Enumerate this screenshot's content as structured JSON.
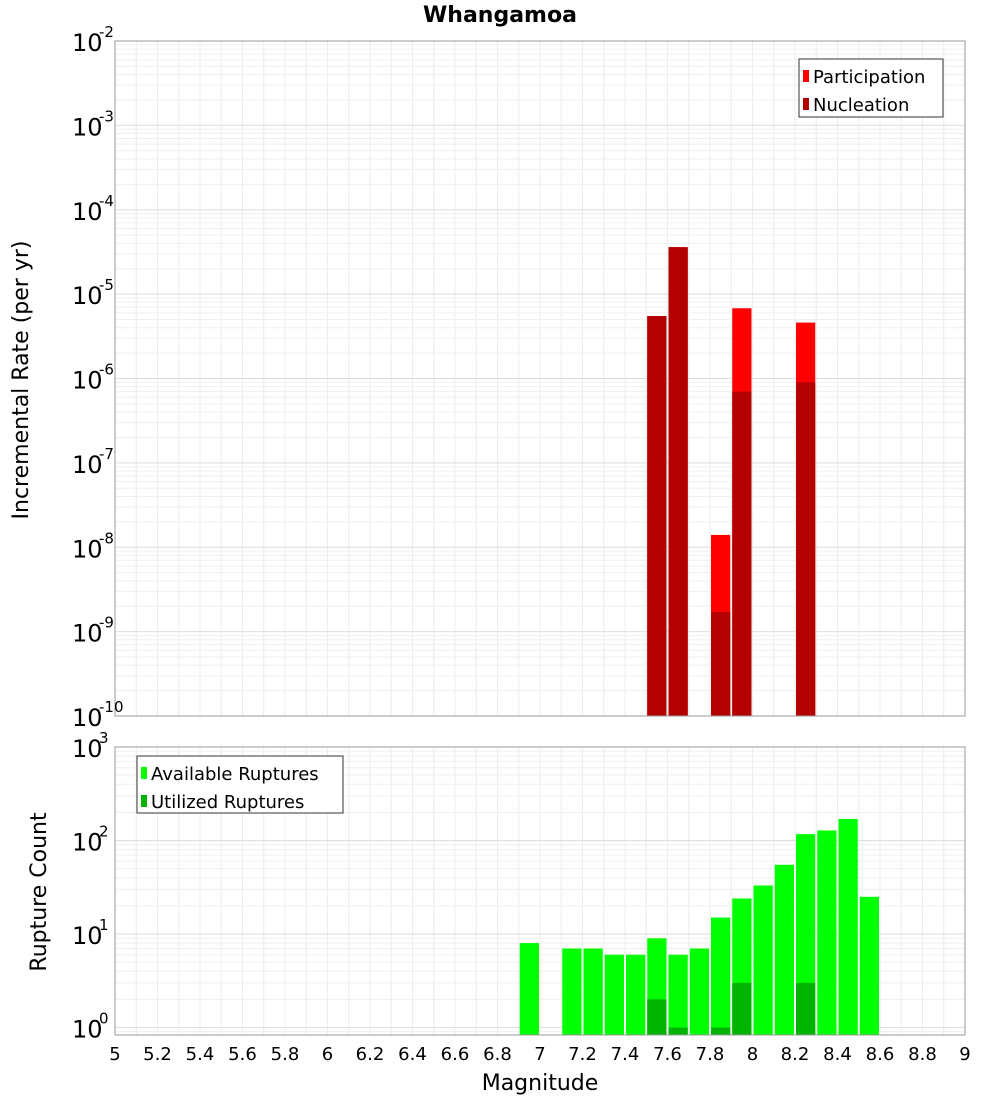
{
  "chart_data": [
    {
      "type": "bar",
      "title": "Whangamoa",
      "xlabel": "",
      "ylabel": "Incremental Rate (per yr)",
      "yscale": "log",
      "xlim": [
        5,
        9
      ],
      "ylim_exp": [
        -10,
        -2
      ],
      "y_ticks": [
        {
          "base": "10",
          "exp": "-10"
        },
        {
          "base": "10",
          "exp": "-9"
        },
        {
          "base": "10",
          "exp": "-8"
        },
        {
          "base": "10",
          "exp": "-7"
        },
        {
          "base": "10",
          "exp": "-6"
        },
        {
          "base": "10",
          "exp": "-5"
        },
        {
          "base": "10",
          "exp": "-4"
        },
        {
          "base": "10",
          "exp": "-3"
        },
        {
          "base": "10",
          "exp": "-2"
        }
      ],
      "bin_width": 0.1,
      "legend_position": "top-right",
      "grid": true,
      "series": [
        {
          "name": "Participation",
          "color": "#ff0000",
          "x": [
            7.55,
            7.65,
            7.85,
            7.95,
            8.25
          ],
          "values": [
            5.5e-06,
            3.6e-05,
            1.4e-08,
            6.8e-06,
            4.6e-06
          ]
        },
        {
          "name": "Nucleation",
          "color": "#b30000",
          "x": [
            7.55,
            7.65,
            7.85,
            7.95,
            8.25
          ],
          "values": [
            5.5e-06,
            3.6e-05,
            1.7e-09,
            7e-07,
            9e-07
          ]
        }
      ]
    },
    {
      "type": "bar",
      "title": "",
      "xlabel": "Magnitude",
      "ylabel": "Rupture Count",
      "yscale": "log",
      "xlim": [
        5,
        9
      ],
      "ylim_exp": [
        -0.08,
        3
      ],
      "x_ticks": [
        "5",
        "5.2",
        "5.4",
        "5.6",
        "5.8",
        "6",
        "6.2",
        "6.4",
        "6.6",
        "6.8",
        "7",
        "7.2",
        "7.4",
        "7.6",
        "7.8",
        "8",
        "8.2",
        "8.4",
        "8.6",
        "8.8",
        "9"
      ],
      "y_ticks": [
        {
          "base": "10",
          "exp": "0"
        },
        {
          "base": "10",
          "exp": "1"
        },
        {
          "base": "10",
          "exp": "2"
        },
        {
          "base": "10",
          "exp": "3"
        }
      ],
      "bin_width": 0.1,
      "legend_position": "top-left",
      "grid": true,
      "series": [
        {
          "name": "Available Ruptures",
          "color": "#00ff00",
          "x": [
            6.95,
            7.15,
            7.25,
            7.35,
            7.45,
            7.55,
            7.65,
            7.75,
            7.85,
            7.95,
            8.05,
            8.15,
            8.25,
            8.35,
            8.45,
            8.55
          ],
          "values": [
            8,
            7,
            7,
            6,
            6,
            9,
            6,
            7,
            15,
            24,
            33,
            55,
            117,
            128,
            170,
            25
          ]
        },
        {
          "name": "Utilized Ruptures",
          "color": "#00b300",
          "x": [
            7.55,
            7.65,
            7.85,
            7.95,
            8.25
          ],
          "values": [
            2,
            1,
            1,
            3,
            3
          ]
        }
      ]
    }
  ]
}
